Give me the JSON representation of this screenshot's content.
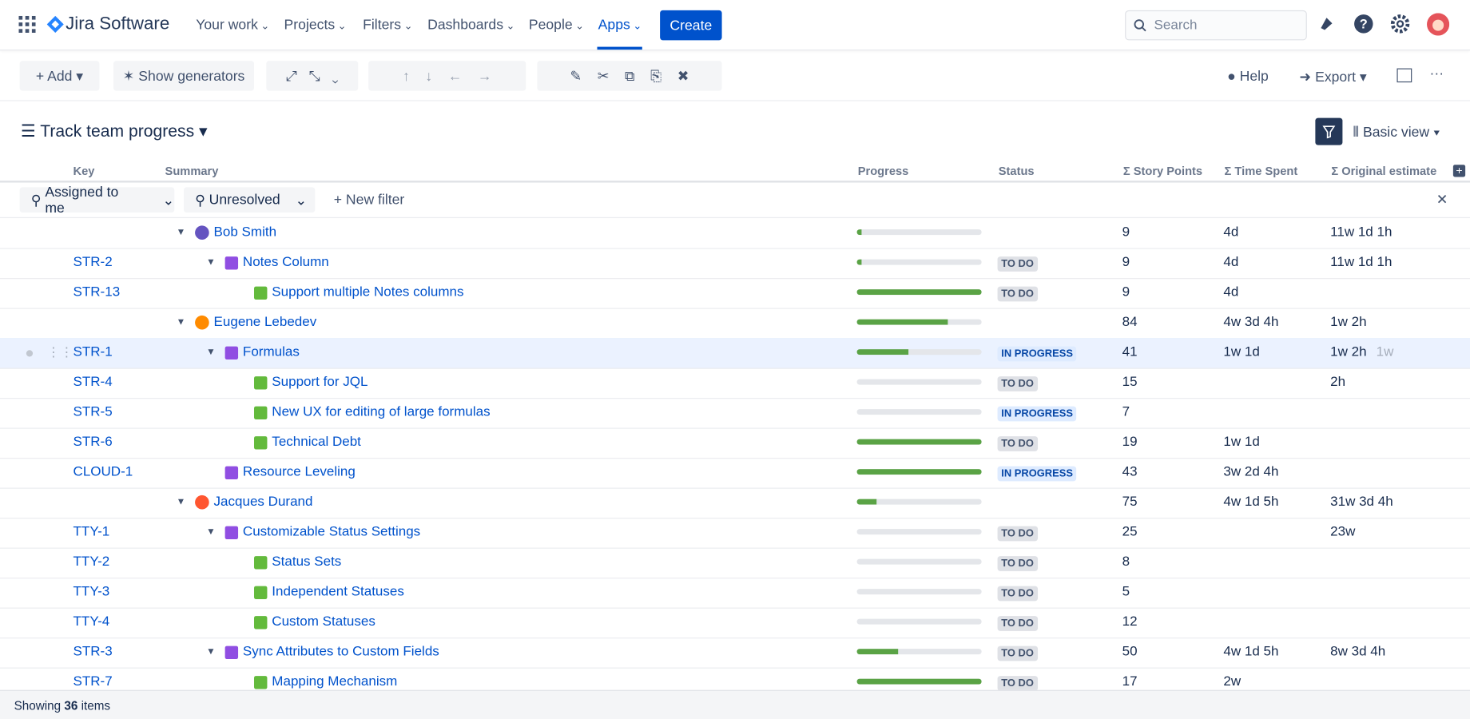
{
  "nav": {
    "product": "Jira Software",
    "menu": [
      "Your work",
      "Projects",
      "Filters",
      "Dashboards",
      "People",
      "Apps"
    ],
    "create": "Create",
    "search": "Search"
  },
  "toolbar": {
    "add": "Add",
    "generators": "Show generators",
    "help": "Help",
    "export": "Export"
  },
  "header": {
    "title": "Track team progress",
    "view": "Basic view"
  },
  "columns": {
    "key": "Key",
    "summary": "Summary",
    "progress": "Progress",
    "status": "Status",
    "story_points": "Σ Story Points",
    "time_spent": "Σ Time Spent",
    "original_estimate": "Σ Original estimate"
  },
  "filters": {
    "assigned": "Assigned to me",
    "unresolved": "Unresolved",
    "new": "New filter"
  },
  "groups": [
    {
      "assignee": "Bob Smith",
      "progress": 4,
      "story_points": 9,
      "time_spent": "4d",
      "original_estimate": "11w 1d 1h",
      "items": [
        {
          "key": "STR-2",
          "summary": "Notes Column",
          "progress": 4,
          "status": "TO DO",
          "story_points": 9,
          "time_spent": "4d",
          "original_estimate": "11w 1d 1h",
          "children": [
            {
              "key": "STR-13",
              "summary": "Support multiple Notes columns",
              "progress": 100,
              "status": "TO DO",
              "story_points": 9,
              "time_spent": "4d"
            }
          ]
        }
      ]
    },
    {
      "assignee": "Eugene Lebedev",
      "progress": 73,
      "story_points": 84,
      "time_spent": "4w 3d 4h",
      "original_estimate": "1w 2h",
      "items": [
        {
          "key": "STR-1",
          "summary": "Formulas",
          "progress": 41,
          "status": "IN PROGRESS",
          "story_points": 41,
          "time_spent": "1w 1d",
          "original_estimate": "1w 2h",
          "estimate_extra": "1w",
          "children": [
            {
              "key": "STR-4",
              "summary": "Support for JQL",
              "progress": 0,
              "status": "TO DO",
              "story_points": 15,
              "original_estimate": "2h"
            },
            {
              "key": "STR-5",
              "summary": "New UX for editing of large formulas",
              "progress": 0,
              "status": "IN PROGRESS",
              "story_points": 7
            },
            {
              "key": "STR-6",
              "summary": "Technical Debt",
              "progress": 100,
              "status": "TO DO",
              "story_points": 19,
              "time_spent": "1w 1d"
            }
          ]
        },
        {
          "key": "CLOUD-1",
          "summary": "Resource Leveling",
          "progress": 100,
          "status": "IN PROGRESS",
          "story_points": 43,
          "time_spent": "3w 2d 4h"
        }
      ]
    },
    {
      "assignee": "Jacques Durand",
      "progress": 16,
      "story_points": 75,
      "time_spent": "4w 1d 5h",
      "original_estimate": "31w 3d 4h",
      "items": [
        {
          "key": "TTY-1",
          "summary": "Customizable Status Settings",
          "progress": 0,
          "status": "TO DO",
          "story_points": 25,
          "original_estimate": "23w",
          "children": [
            {
              "key": "TTY-2",
              "summary": "Status Sets",
              "progress": 0,
              "status": "TO DO",
              "story_points": 8
            },
            {
              "key": "TTY-3",
              "summary": "Independent Statuses",
              "progress": 0,
              "status": "TO DO",
              "story_points": 5
            },
            {
              "key": "TTY-4",
              "summary": "Custom Statuses",
              "progress": 0,
              "status": "TO DO",
              "story_points": 12
            }
          ]
        },
        {
          "key": "STR-3",
          "summary": "Sync Attributes to Custom Fields",
          "progress": 33,
          "status": "TO DO",
          "story_points": 50,
          "time_spent": "4w 1d 5h",
          "original_estimate": "8w 3d 4h",
          "children": [
            {
              "key": "STR-7",
              "summary": "Mapping Mechanism",
              "progress": 100,
              "status": "TO DO",
              "story_points": 17,
              "time_spent": "2w"
            }
          ]
        }
      ]
    }
  ],
  "footer": {
    "prefix": "Showing",
    "count": 36,
    "suffix": "items"
  }
}
